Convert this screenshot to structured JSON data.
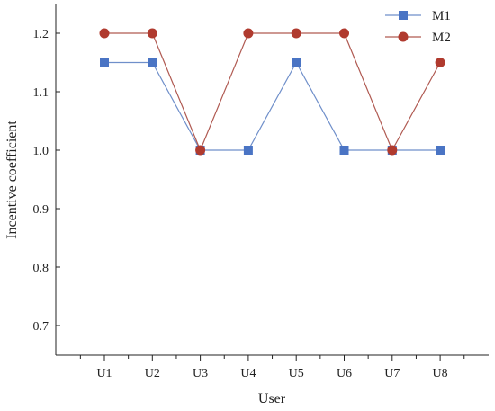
{
  "chart_data": {
    "type": "line",
    "title": "",
    "xlabel": "User",
    "ylabel": "Incentive coefficient",
    "categories": [
      "U1",
      "U2",
      "U3",
      "U4",
      "U5",
      "U6",
      "U7",
      "U8"
    ],
    "yticks": [
      "0.7",
      "0.8",
      "0.9",
      "1.0",
      "1.1",
      "1.2"
    ],
    "ytick_values": [
      0.7,
      0.8,
      0.9,
      1.0,
      1.1,
      1.2
    ],
    "ylim": [
      0.65,
      1.25
    ],
    "grid": false,
    "legend_position": "top-right",
    "series": [
      {
        "name": "M1",
        "values": [
          1.15,
          1.15,
          1.0,
          1.0,
          1.15,
          1.0,
          1.0,
          1.0
        ],
        "color": "#6f8fca",
        "marker_color": "#4a74c4",
        "marker": "square"
      },
      {
        "name": "M2",
        "values": [
          1.2,
          1.2,
          1.0,
          1.2,
          1.2,
          1.2,
          1.0,
          1.15
        ],
        "color": "#b05a52",
        "marker_color": "#b03a2e",
        "marker": "circle"
      }
    ]
  }
}
